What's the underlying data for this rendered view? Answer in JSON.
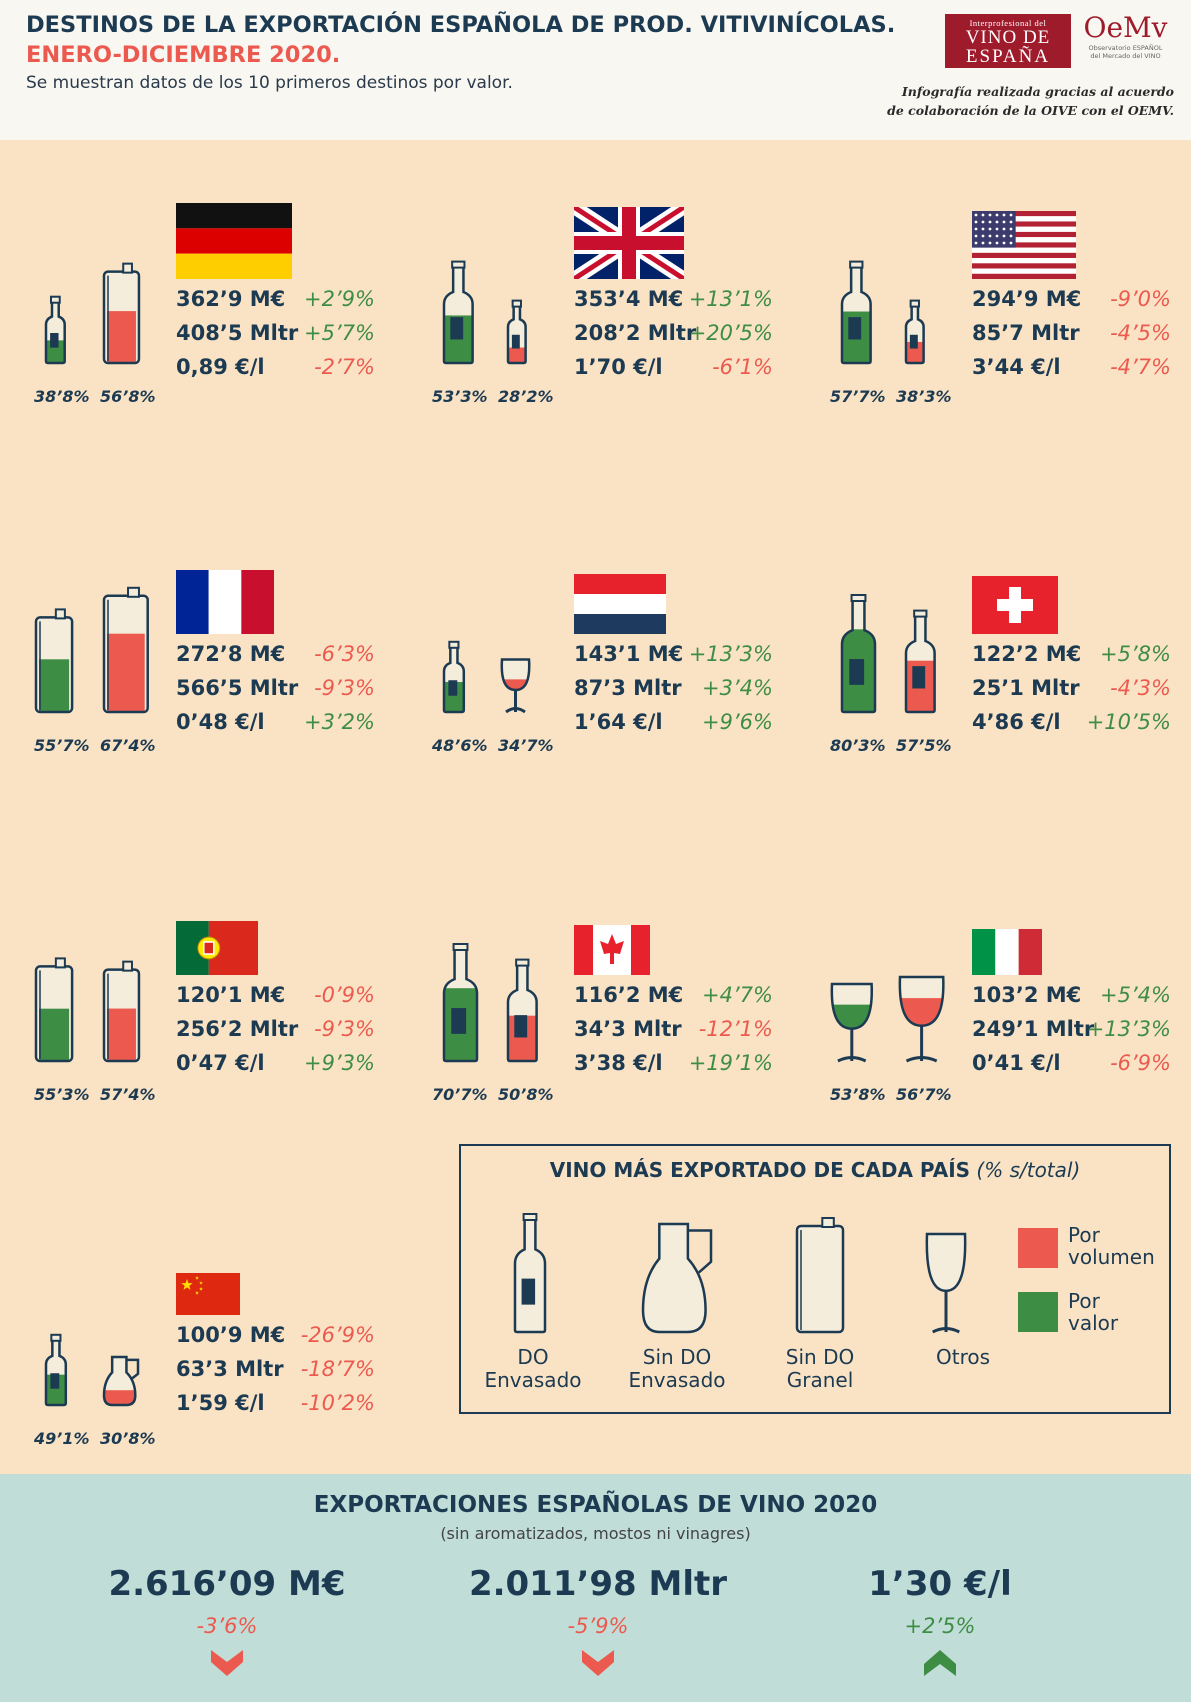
{
  "header": {
    "title_line1": "DESTINOS DE LA EXPORTACIÓN ESPAÑOLA DE PROD. VITIVINÍCOLAS.",
    "title_line2": "ENERO-DICIEMBRE 2020.",
    "subtitle": "Se muestran datos de los 10 primeros destinos por valor.",
    "credit_line1": "Infografía realizada gracias al acuerdo",
    "credit_line2": "de colaboración de la OIVE con el OEMV.",
    "logo_ive": {
      "line1": "Interprofesional del",
      "line2": "VINO DE",
      "line3": "ESPAÑA"
    },
    "logo_oemv": {
      "big": "OeMv",
      "line1": "Observatorio ESPAÑOL",
      "line2": "del Mercado del VINO"
    }
  },
  "countries": [
    {
      "name": "Alemania",
      "flag": "germany",
      "value": "362’9 M€",
      "value_chg": "+2’9%",
      "volume": "408’5 Mltr",
      "volume_chg": "+5’7%",
      "price": "0,89 €/l",
      "price_chg": "-2’7%",
      "value_type": "do_envasado",
      "value_pct": "38’8%",
      "volume_type": "sin_do_granel",
      "volume_pct": "56’8%"
    },
    {
      "name": "Reino Unido",
      "flag": "uk",
      "value": "353’4 M€",
      "value_chg": "+13’1%",
      "volume": "208’2 Mltr",
      "volume_chg": "+20’5%",
      "price": "1’70 €/l",
      "price_chg": "-6’1%",
      "value_type": "do_envasado",
      "value_pct": "53’3%",
      "volume_type": "do_envasado",
      "volume_pct": "28’2%"
    },
    {
      "name": "Estados Unidos",
      "flag": "usa",
      "value": "294’9 M€",
      "value_chg": "-9’0%",
      "volume": "85’7 Mltr",
      "volume_chg": "-4’5%",
      "price": "3’44 €/l",
      "price_chg": "-4’7%",
      "value_type": "do_envasado",
      "value_pct": "57’7%",
      "volume_type": "do_envasado",
      "volume_pct": "38’3%"
    },
    {
      "name": "Francia",
      "flag": "france",
      "value": "272’8 M€",
      "value_chg": "-6’3%",
      "volume": "566’5 Mltr",
      "volume_chg": "-9’3%",
      "price": "0’48 €/l",
      "price_chg": "+3’2%",
      "value_type": "sin_do_granel",
      "value_pct": "55’7%",
      "volume_type": "sin_do_granel",
      "volume_pct": "67’4%"
    },
    {
      "name": "Países Bajos",
      "flag": "netherlands",
      "value": "143’1 M€",
      "value_chg": "+13’3%",
      "volume": "87’3 Mltr",
      "volume_chg": "+3’4%",
      "price": "1’64 €/l",
      "price_chg": "+9’6%",
      "value_type": "do_envasado",
      "value_pct": "48’6%",
      "volume_type": "otros",
      "volume_pct": "34’7%"
    },
    {
      "name": "Suiza",
      "flag": "switzerland",
      "value": "122’2 M€",
      "value_chg": "+5’8%",
      "volume": "25’1 Mltr",
      "volume_chg": "-4’3%",
      "price": "4’86 €/l",
      "price_chg": "+10’5%",
      "value_type": "do_envasado",
      "value_pct": "80’3%",
      "volume_type": "do_envasado",
      "volume_pct": "57’5%"
    },
    {
      "name": "Portugal",
      "flag": "portugal",
      "value": "120’1 M€",
      "value_chg": "-0’9%",
      "volume": "256’2 Mltr",
      "volume_chg": "-9’3%",
      "price": "0’47 €/l",
      "price_chg": "+9’3%",
      "value_type": "sin_do_granel",
      "value_pct": "55’3%",
      "volume_type": "sin_do_granel",
      "volume_pct": "57’4%"
    },
    {
      "name": "Canadá",
      "flag": "canada",
      "value": "116’2 M€",
      "value_chg": "+4’7%",
      "volume": "34’3 Mltr",
      "volume_chg": "-12’1%",
      "price": "3’38 €/l",
      "price_chg": "+19’1%",
      "value_type": "do_envasado",
      "value_pct": "70’7%",
      "volume_type": "do_envasado",
      "volume_pct": "50’8%"
    },
    {
      "name": "Italia",
      "flag": "italy",
      "value": "103’2 M€",
      "value_chg": "+5’4%",
      "volume": "249’1 Mltr",
      "volume_chg": "+13’3%",
      "price": "0’41 €/l",
      "price_chg": "-6’9%",
      "value_type": "otros",
      "value_pct": "53’8%",
      "volume_type": "otros",
      "volume_pct": "56’7%"
    },
    {
      "name": "China",
      "flag": "china",
      "value": "100’9 M€",
      "value_chg": "-26’9%",
      "volume": "63’3 Mltr",
      "volume_chg": "-18’7%",
      "price": "1’59 €/l",
      "price_chg": "-10’2%",
      "value_type": "do_envasado",
      "value_pct": "49’1%",
      "volume_type": "sin_do_envasado",
      "volume_pct": "30’8%"
    }
  ],
  "legend": {
    "title_bold": "VINO MÁS EXPORTADO DE CADA PAÍS",
    "title_italic": "(% s/total)",
    "items": [
      {
        "line1": "DO",
        "line2": "Envasado",
        "icon": "bottle-icon"
      },
      {
        "line1": "Sin DO",
        "line2": "Envasado",
        "icon": "jug-icon"
      },
      {
        "line1": "Sin DO",
        "line2": "Granel",
        "icon": "bulk-container-icon"
      },
      {
        "line1": "Otros",
        "line2": "",
        "icon": "wine-glass-icon"
      }
    ],
    "volume_label_1": "Por",
    "volume_label_2": "volumen",
    "value_label_1": "Por",
    "value_label_2": "valor"
  },
  "footer": {
    "title": "EXPORTACIONES ESPAÑOLAS DE VINO 2020",
    "subtitle": "(sin aromatizados, mostos ni vinagres)",
    "value": "2.616’09 M€",
    "value_chg": "-3’6%",
    "value_dir": "down",
    "volume": "2.011’98 Mltr",
    "volume_chg": "-5’9%",
    "volume_dir": "down",
    "price": "1’30 €/l",
    "price_chg": "+2’5%",
    "price_dir": "up"
  },
  "colors": {
    "navy": "#1c3a52",
    "red": "#ec5a4f",
    "green": "#3e8d45",
    "background": "#fae3c4",
    "header_bg": "#f8f7f2",
    "footer_bg": "#c0ddd7",
    "cream": "#f4eddc"
  }
}
